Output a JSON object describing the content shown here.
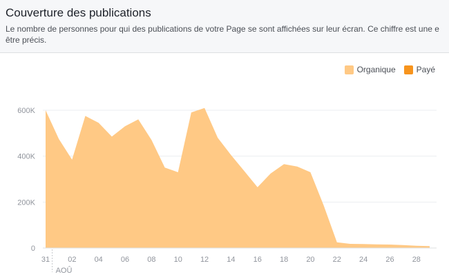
{
  "header": {
    "title": "Couverture des publications",
    "description": "Le nombre de personnes pour qui des publications de votre Page se sont affichées sur leur écran. Ce chiffre est une estimation qui peut ne pas être précis.",
    "description_line1": "Le nombre de personnes pour qui des publications de votre Page se sont affichées sur leur écran. Ce chiffre est une e",
    "description_line2": "être précis."
  },
  "legend": {
    "organic_label": "Organique",
    "paid_label": "Payé"
  },
  "colors": {
    "organic": "#ffc985",
    "paid": "#f7941d",
    "grid": "#ebedf0",
    "axis_text": "#90949c"
  },
  "chart_data": {
    "type": "area",
    "x": [
      "31",
      "01",
      "02",
      "03",
      "04",
      "05",
      "06",
      "07",
      "08",
      "09",
      "10",
      "11",
      "12",
      "13",
      "14",
      "15",
      "16",
      "17",
      "18",
      "19",
      "20",
      "21",
      "22",
      "23",
      "24",
      "25",
      "26",
      "27",
      "28",
      "29"
    ],
    "x_tick_labels": [
      "31",
      "02",
      "04",
      "06",
      "08",
      "10",
      "12",
      "14",
      "16",
      "18",
      "20",
      "22",
      "24",
      "26",
      "28"
    ],
    "month_label": "AOÛ",
    "y_tick_labels": [
      "0",
      "200K",
      "400K",
      "600K"
    ],
    "ylim": [
      0,
      600000
    ],
    "series": [
      {
        "name": "Organique",
        "values": [
          600000,
          475000,
          385000,
          575000,
          545000,
          485000,
          530000,
          560000,
          470000,
          350000,
          330000,
          590000,
          610000,
          480000,
          405000,
          335000,
          265000,
          325000,
          365000,
          355000,
          330000,
          185000,
          25000,
          18000,
          17000,
          16000,
          15000,
          13000,
          10000,
          8000
        ]
      },
      {
        "name": "Payé",
        "values": [
          0,
          0,
          0,
          0,
          0,
          0,
          0,
          0,
          0,
          0,
          0,
          0,
          0,
          0,
          0,
          0,
          0,
          0,
          0,
          0,
          0,
          0,
          0,
          0,
          0,
          0,
          0,
          0,
          0,
          0
        ]
      }
    ],
    "grid": true,
    "legend_position": "top-right"
  }
}
